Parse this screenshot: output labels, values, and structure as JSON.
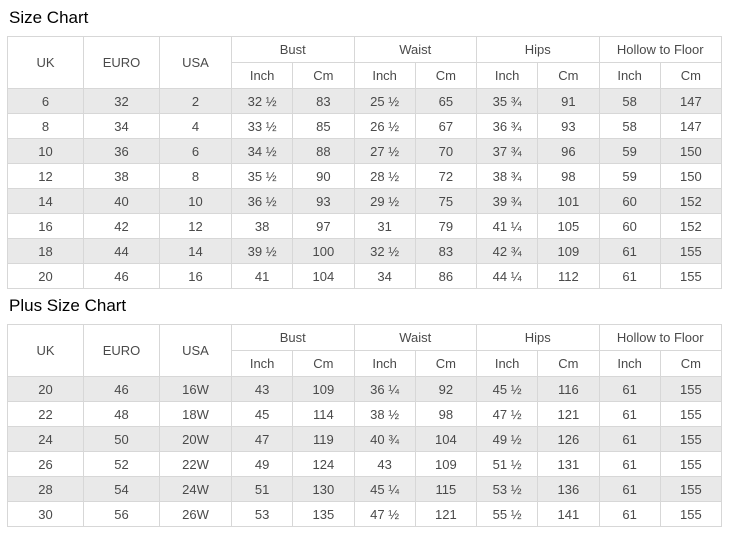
{
  "titles": {
    "size_chart": "Size Chart",
    "plus_size_chart": "Plus Size Chart"
  },
  "table_header": {
    "uk": "UK",
    "euro": "EURO",
    "usa": "USA",
    "groups": [
      "Bust",
      "Waist",
      "Hips",
      "Hollow to Floor"
    ],
    "sub": {
      "inch": "Inch",
      "cm": "Cm"
    }
  },
  "size_chart": {
    "rows": [
      [
        "6",
        "32",
        "2",
        "32 ½",
        "83",
        "25 ½",
        "65",
        "35 ¾",
        "91",
        "58",
        "147"
      ],
      [
        "8",
        "34",
        "4",
        "33 ½",
        "85",
        "26 ½",
        "67",
        "36 ¾",
        "93",
        "58",
        "147"
      ],
      [
        "10",
        "36",
        "6",
        "34 ½",
        "88",
        "27 ½",
        "70",
        "37 ¾",
        "96",
        "59",
        "150"
      ],
      [
        "12",
        "38",
        "8",
        "35 ½",
        "90",
        "28 ½",
        "72",
        "38 ¾",
        "98",
        "59",
        "150"
      ],
      [
        "14",
        "40",
        "10",
        "36 ½",
        "93",
        "29 ½",
        "75",
        "39 ¾",
        "101",
        "60",
        "152"
      ],
      [
        "16",
        "42",
        "12",
        "38",
        "97",
        "31",
        "79",
        "41 ¼",
        "105",
        "60",
        "152"
      ],
      [
        "18",
        "44",
        "14",
        "39 ½",
        "100",
        "32 ½",
        "83",
        "42 ¾",
        "109",
        "61",
        "155"
      ],
      [
        "20",
        "46",
        "16",
        "41",
        "104",
        "34",
        "86",
        "44 ¼",
        "112",
        "61",
        "155"
      ]
    ]
  },
  "plus_size_chart": {
    "rows": [
      [
        "20",
        "46",
        "16W",
        "43",
        "109",
        "36 ¼",
        "92",
        "45 ½",
        "116",
        "61",
        "155"
      ],
      [
        "22",
        "48",
        "18W",
        "45",
        "114",
        "38 ½",
        "98",
        "47 ½",
        "121",
        "61",
        "155"
      ],
      [
        "24",
        "50",
        "20W",
        "47",
        "119",
        "40 ¾",
        "104",
        "49 ½",
        "126",
        "61",
        "155"
      ],
      [
        "26",
        "52",
        "22W",
        "49",
        "124",
        "43",
        "109",
        "51 ½",
        "131",
        "61",
        "155"
      ],
      [
        "28",
        "54",
        "24W",
        "51",
        "130",
        "45 ¼",
        "115",
        "53 ½",
        "136",
        "61",
        "155"
      ],
      [
        "30",
        "56",
        "26W",
        "53",
        "135",
        "47 ½",
        "121",
        "55 ½",
        "141",
        "61",
        "155"
      ]
    ]
  },
  "colors": {
    "stripe": "#e9e9e9",
    "border": "#d7d7d7",
    "text": "#4a4a4a",
    "title": "#000000"
  }
}
